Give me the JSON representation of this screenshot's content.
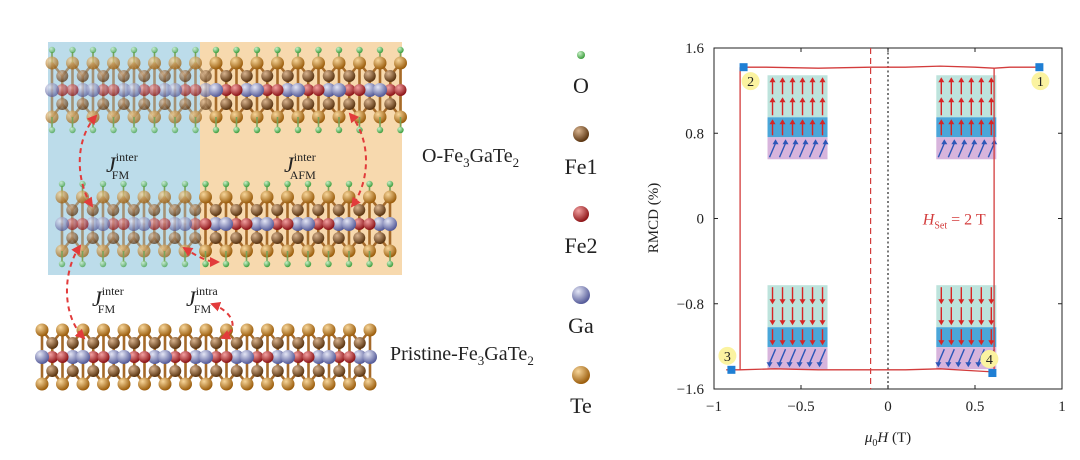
{
  "structure": {
    "labels": {
      "o_fe3gate2": "O-Fe",
      "o_fe3gate2_sub": "3",
      "o_fe3gate2_rest": "GaTe",
      "o_fe3gate2_sub2": "2",
      "pristine": "Pristine-Fe",
      "pristine_sub": "3",
      "pristine_rest": "GaTe",
      "pristine_sub2": "2"
    },
    "exchange": [
      {
        "id": "fm-inter-top",
        "symbol": "J",
        "sup": "inter",
        "sub": "FM"
      },
      {
        "id": "afm-inter",
        "symbol": "J",
        "sup": "inter",
        "sub": "AFM"
      },
      {
        "id": "fm-inter-bottom",
        "symbol": "J",
        "sup": "inter",
        "sub": "FM"
      },
      {
        "id": "fm-intra",
        "symbol": "J",
        "sup": "intra",
        "sub": "FM"
      }
    ],
    "legend": [
      {
        "label": "O",
        "color": "#5cb85c",
        "size": 4
      },
      {
        "label": "Fe1",
        "color": "#7a4a1e",
        "size": 8
      },
      {
        "label": "Fe2",
        "color": "#c0282d",
        "size": 8
      },
      {
        "label": "Ga",
        "color": "#7a7fb3",
        "size": 9
      },
      {
        "label": "Te",
        "color": "#c7811c",
        "size": 9
      }
    ],
    "colors": {
      "fm_region": "#bcdcea",
      "afm_region": "#f7d9ae",
      "exchange_arrow": "#e23b3b"
    }
  },
  "chart_data": {
    "type": "line",
    "xlabel": "μ0H (T)",
    "xlabel_parts": {
      "mu": "μ",
      "sub": "0",
      "H": "H",
      "unit": " (T)"
    },
    "ylabel": "RMCD (%)",
    "xlim": [
      -1,
      1
    ],
    "ylim": [
      -1.6,
      1.6
    ],
    "xticks": [
      -1,
      -0.5,
      0,
      0.5,
      1
    ],
    "xtick_labels": [
      "−1",
      "−0.5",
      "0",
      "0.5",
      "1"
    ],
    "yticks": [
      -1.6,
      -0.8,
      0,
      0.8,
      1.6
    ],
    "ytick_labels": [
      "−1.6",
      "−0.8",
      "0",
      "0.8",
      "1.6"
    ],
    "annotation": {
      "text_pre": "H",
      "text_sub": "Set",
      "text_post": " = 2 T",
      "x": 0.2,
      "y": 0
    },
    "series": [
      {
        "x": [
          -0.93,
          -0.85,
          -0.65,
          -0.4,
          -0.1,
          0.1,
          0.3,
          0.5,
          0.6,
          0.61
        ],
        "y": [
          -1.42,
          -1.42,
          -1.41,
          -1.42,
          -1.42,
          -1.42,
          -1.41,
          -1.43,
          -1.44,
          -1.45
        ]
      },
      {
        "x": [
          0.61,
          0.61
        ],
        "y": [
          -1.45,
          1.41
        ]
      },
      {
        "x": [
          0.61,
          0.7,
          0.8,
          0.87
        ],
        "y": [
          1.41,
          1.42,
          1.42,
          1.42
        ]
      },
      {
        "x": [
          -0.85,
          -0.7,
          -0.4,
          -0.1,
          0.1,
          0.3,
          0.5,
          0.61
        ],
        "y": [
          1.42,
          1.42,
          1.41,
          1.42,
          1.42,
          1.43,
          1.42,
          1.41
        ]
      },
      {
        "x": [
          -0.85,
          -0.85
        ],
        "y": [
          1.42,
          -1.42
        ]
      }
    ],
    "reference_lines": [
      {
        "axis": "x",
        "value": 0,
        "style": "dotted",
        "color": "#222222"
      },
      {
        "axis": "x",
        "value": -0.1,
        "style": "dashed",
        "color": "#d33c3c"
      }
    ],
    "points": [
      {
        "label": "1",
        "x": 0.87,
        "y": 1.42
      },
      {
        "label": "2",
        "x": -0.83,
        "y": 1.42
      },
      {
        "label": "3",
        "x": -0.9,
        "y": -1.42
      },
      {
        "label": "4",
        "x": 0.6,
        "y": -1.45
      }
    ],
    "spin_insets": [
      {
        "x": -0.52,
        "y": 0.95,
        "top": "up",
        "bottom": "up"
      },
      {
        "x": 0.45,
        "y": 0.95,
        "top": "up",
        "bottom": "up"
      },
      {
        "x": -0.52,
        "y": -1.02,
        "top": "down",
        "bottom": "down"
      },
      {
        "x": 0.45,
        "y": -1.02,
        "top": "down",
        "bottom": "down"
      }
    ],
    "colors": {
      "loop": "#d33c3c",
      "marker": "#1f7fd4",
      "badge": "#fbf3a0"
    }
  }
}
